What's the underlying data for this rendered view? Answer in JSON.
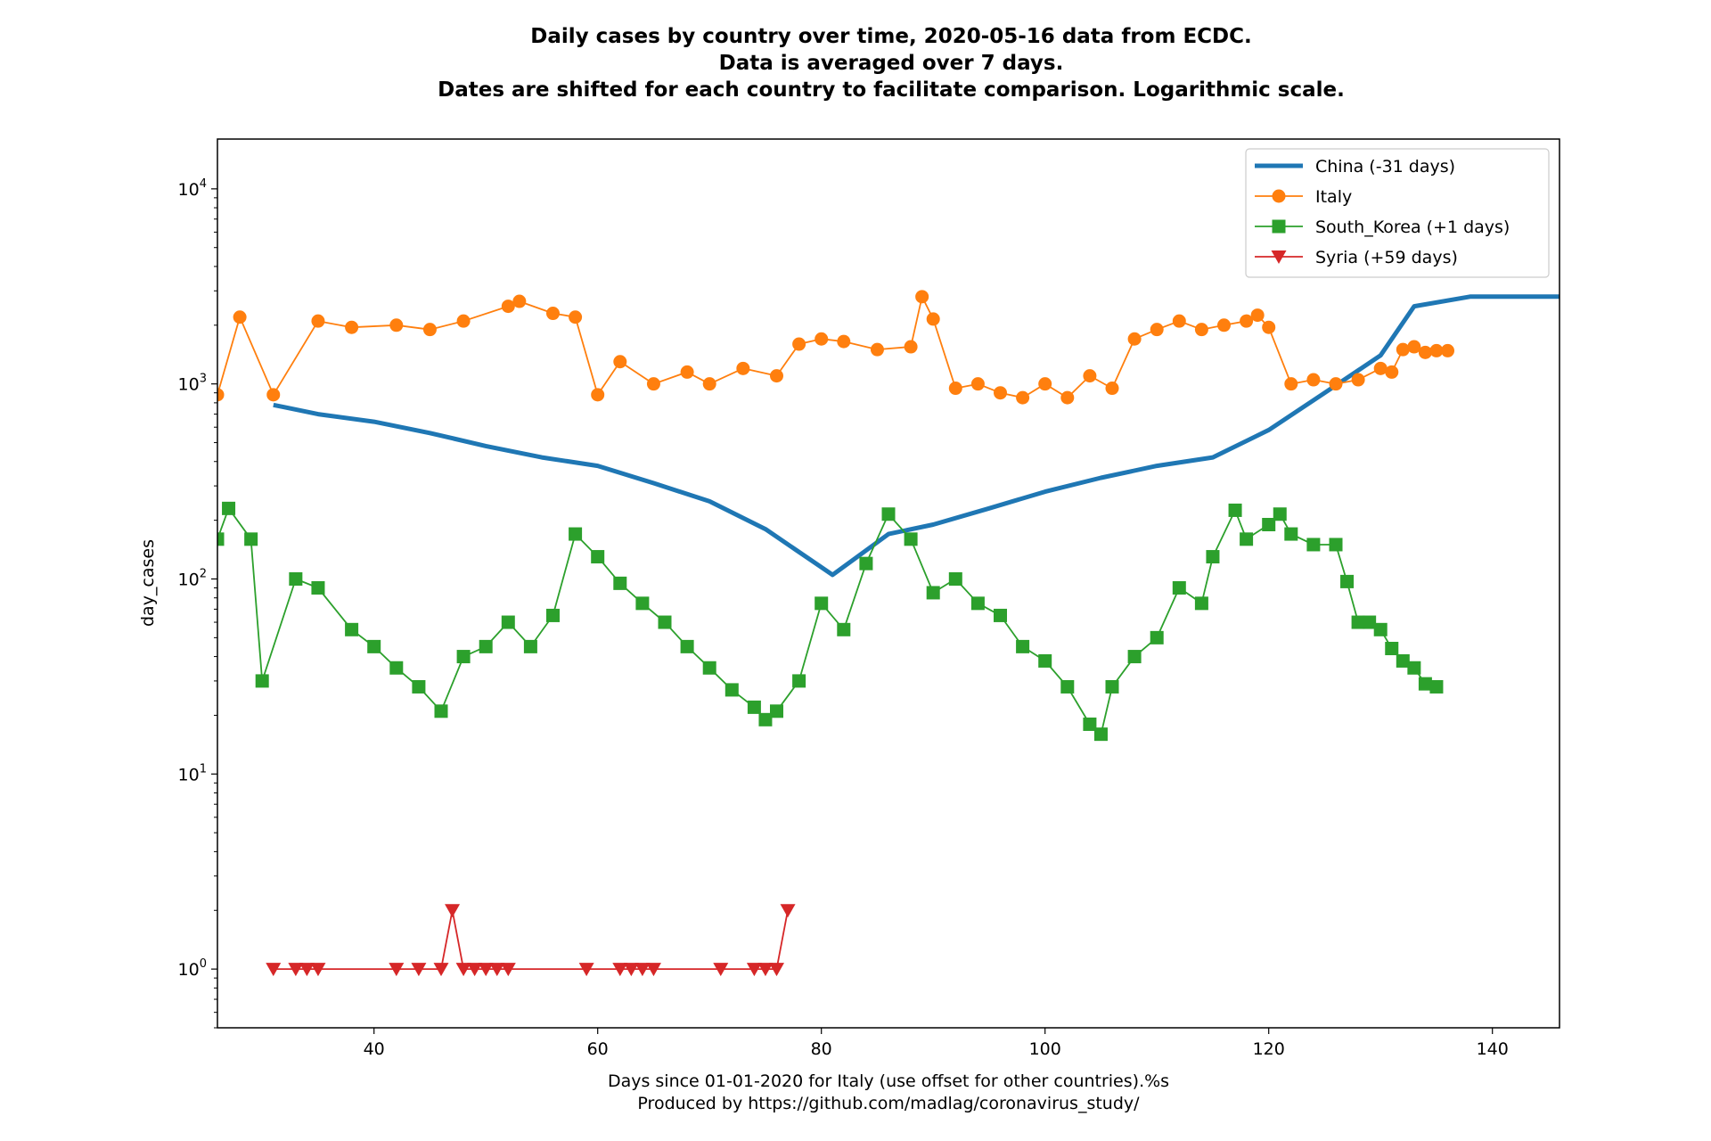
{
  "chart_data": {
    "type": "line",
    "title_lines": [
      "Daily cases by country over time, 2020-05-16 data from ECDC.",
      "Data is averaged over 7 days.",
      "Dates are shifted for each country to facilitate comparison. Logarithmic scale."
    ],
    "xlabel_lines": [
      "Days since 01-01-2020 for Italy (use offset for other countries).%s",
      "Produced by https://github.com/madlag/coronavirus_study/"
    ],
    "ylabel": "day_cases",
    "xlim": [
      26,
      146
    ],
    "ylim": [
      0.5,
      18000
    ],
    "yscale": "log",
    "x_ticks": [
      40,
      60,
      80,
      100,
      120,
      140
    ],
    "x_tick_labels": [
      "40",
      "60",
      "80",
      "100",
      "120",
      "140"
    ],
    "y_ticks": [
      1,
      10,
      100,
      1000,
      10000
    ],
    "y_tick_labels": [
      "10",
      "10",
      "10",
      "10",
      "10"
    ],
    "y_tick_exponents": [
      "0",
      "1",
      "2",
      "3",
      "4"
    ],
    "grid": false,
    "legend_position": "top-right",
    "colors": {
      "China": "#1f77b4",
      "Italy": "#ff7f0e",
      "South_Korea": "#2ca02c",
      "Syria": "#d62728"
    },
    "series": [
      {
        "name": "China (-31 days)",
        "key": "China",
        "marker": "none",
        "x": [
          31,
          32,
          35,
          40,
          45,
          50,
          55,
          60,
          65,
          70,
          75,
          81,
          86,
          90,
          95,
          100,
          105,
          110,
          115,
          120,
          125,
          130,
          133,
          138,
          146
        ],
        "y": [
          780,
          760,
          700,
          640,
          560,
          480,
          420,
          380,
          310,
          250,
          180,
          105,
          170,
          190,
          230,
          280,
          330,
          380,
          420,
          580,
          900,
          1400,
          2500,
          2800,
          2800
        ]
      },
      {
        "name": "Italy",
        "key": "Italy",
        "marker": "circle",
        "x": [
          26,
          28,
          31,
          35,
          38,
          42,
          45,
          48,
          52,
          53,
          56,
          58,
          60,
          62,
          65,
          68,
          70,
          73,
          76,
          78,
          80,
          82,
          85,
          88,
          89,
          90,
          92,
          94,
          96,
          98,
          100,
          102,
          104,
          106,
          108,
          110,
          112,
          114,
          116,
          118,
          119,
          120,
          122,
          124,
          126,
          128,
          130,
          131,
          132,
          133,
          134,
          135,
          136
        ],
        "y": [
          880,
          2200,
          880,
          2100,
          1950,
          2000,
          1900,
          2100,
          2500,
          2650,
          2300,
          2200,
          880,
          1300,
          1000,
          1150,
          1000,
          1200,
          1100,
          1600,
          1700,
          1650,
          1500,
          1550,
          2800,
          2150,
          950,
          1000,
          900,
          850,
          1000,
          850,
          1100,
          950,
          1700,
          1900,
          2100,
          1900,
          2000,
          2100,
          2250,
          1950,
          1000,
          1050,
          1000,
          1050,
          1200,
          1150,
          1500,
          1550,
          1450,
          1480,
          1480
        ]
      },
      {
        "name": "South_Korea (+1 days)",
        "key": "South_Korea",
        "marker": "square",
        "x": [
          26,
          27,
          29,
          30,
          33,
          35,
          38,
          40,
          42,
          44,
          46,
          48,
          50,
          52,
          54,
          56,
          58,
          60,
          62,
          64,
          66,
          68,
          70,
          72,
          74,
          75,
          76,
          78,
          80,
          82,
          84,
          86,
          88,
          90,
          92,
          94,
          96,
          98,
          100,
          102,
          104,
          105,
          106,
          108,
          110,
          112,
          114,
          115,
          117,
          118,
          120,
          121,
          122,
          124,
          126,
          127,
          128,
          129,
          130,
          131,
          132,
          133,
          134,
          135
        ],
        "y": [
          160,
          230,
          160,
          30,
          100,
          90,
          55,
          45,
          35,
          28,
          21,
          40,
          45,
          60,
          45,
          65,
          170,
          130,
          95,
          75,
          60,
          45,
          35,
          27,
          22,
          19,
          21,
          30,
          75,
          55,
          120,
          215,
          160,
          85,
          100,
          75,
          65,
          45,
          38,
          28,
          18,
          16,
          28,
          40,
          50,
          90,
          75,
          130,
          225,
          160,
          190,
          215,
          170,
          150,
          150,
          97,
          60,
          60,
          55,
          44,
          38,
          35,
          29,
          28
        ]
      },
      {
        "name": "Syria (+59 days)",
        "key": "Syria",
        "marker": "triangle-down",
        "x": [
          31,
          33,
          34,
          35,
          42,
          44,
          46,
          47,
          48,
          49,
          50,
          51,
          52,
          59,
          62,
          63,
          64,
          65,
          71,
          74,
          75,
          76,
          77
        ],
        "y": [
          1,
          1,
          1,
          1,
          1,
          1,
          1,
          2,
          1,
          1,
          1,
          1,
          1,
          1,
          1,
          1,
          1,
          1,
          1,
          1,
          1,
          1,
          2
        ]
      }
    ]
  }
}
